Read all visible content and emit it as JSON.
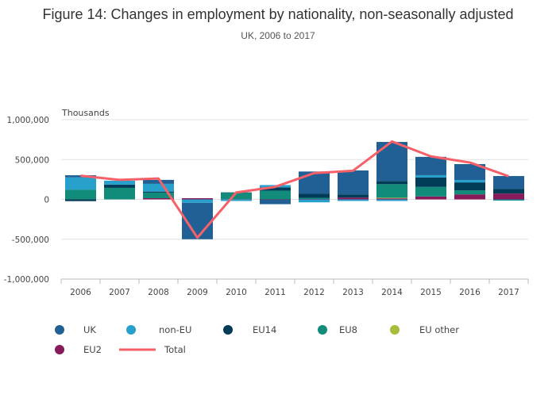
{
  "chart_data": {
    "type": "bar",
    "stacked": true,
    "title": "Figure 14: Changes in employment by nationality, non-seasonally adjusted",
    "subtitle": "UK, 2006 to 2017",
    "ylabel": "Thousands",
    "ylim": [
      -1000000,
      1000000
    ],
    "yticks": [
      -1000000,
      -500000,
      0,
      500000,
      1000000
    ],
    "ytick_labels": [
      "-1,000,000",
      "-500,000",
      "0",
      "500,000",
      "1,000,000"
    ],
    "grid": true,
    "legend_position": "bottom",
    "categories": [
      "2006",
      "2007",
      "2008",
      "2009",
      "2010",
      "2011",
      "2012",
      "2013",
      "2014",
      "2015",
      "2016",
      "2017"
    ],
    "series": [
      {
        "name": "EU2",
        "color": "#871a5b",
        "values": [
          -2000,
          0,
          15000,
          15000,
          3000,
          -5000,
          5000,
          23000,
          13000,
          37000,
          63000,
          73000
        ]
      },
      {
        "name": "EU other",
        "color": "#a8bd3a",
        "values": [
          0,
          0,
          0,
          0,
          0,
          0,
          0,
          0,
          8000,
          0,
          0,
          0
        ]
      },
      {
        "name": "EU8",
        "color": "#118c7b",
        "values": [
          123000,
          145000,
          70000,
          0,
          80000,
          110000,
          15000,
          0,
          170000,
          120000,
          50000,
          -10000
        ]
      },
      {
        "name": "EU14",
        "color": "#003c57",
        "values": [
          -20000,
          40000,
          13000,
          0,
          5000,
          40000,
          50000,
          40000,
          40000,
          117000,
          100000,
          60000
        ]
      },
      {
        "name": "non-EU",
        "color": "#27a0cc",
        "values": [
          153000,
          50000,
          97000,
          -43000,
          -20000,
          30000,
          -37000,
          -20000,
          -20000,
          30000,
          30000,
          -5000
        ]
      },
      {
        "name": "UK",
        "color": "#206095",
        "values": [
          27000,
          0,
          50000,
          -457000,
          0,
          -55000,
          280000,
          300000,
          490000,
          230000,
          200000,
          160000
        ]
      }
    ],
    "line": {
      "name": "Total",
      "color": "#f66068",
      "values": [
        297000,
        245000,
        263000,
        -480000,
        87000,
        157000,
        330000,
        360000,
        727000,
        540000,
        463000,
        290000
      ]
    }
  },
  "legend": [
    {
      "label": "UK",
      "color": "#206095",
      "kind": "dot"
    },
    {
      "label": "non-EU",
      "color": "#27a0cc",
      "kind": "dot"
    },
    {
      "label": "EU14",
      "color": "#003c57",
      "kind": "dot"
    },
    {
      "label": "EU8",
      "color": "#118c7b",
      "kind": "dot"
    },
    {
      "label": "EU other",
      "color": "#a8bd3a",
      "kind": "dot"
    },
    {
      "label": "EU2",
      "color": "#871a5b",
      "kind": "dot"
    },
    {
      "label": "Total",
      "color": "#f66068",
      "kind": "line"
    }
  ]
}
